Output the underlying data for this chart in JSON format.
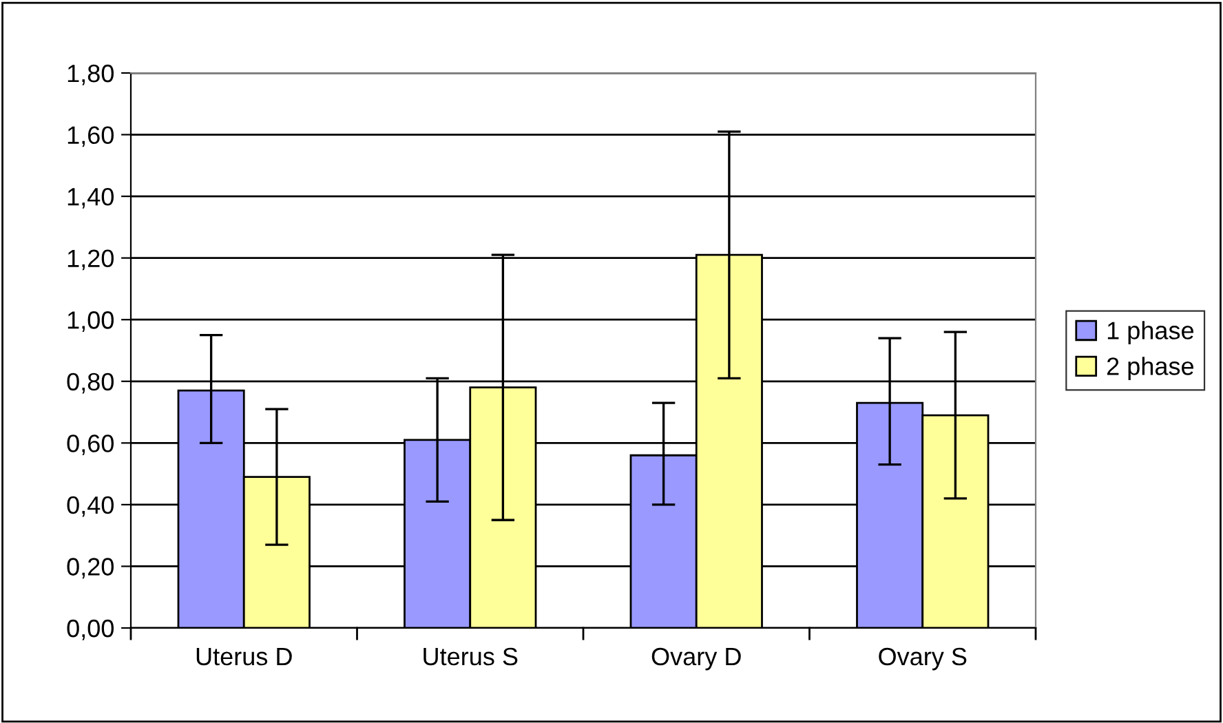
{
  "chart_data": {
    "type": "bar",
    "categories": [
      "Uterus D",
      "Uterus S",
      "Ovary D",
      "Ovary S"
    ],
    "series": [
      {
        "name": "1 phase",
        "color": "#9999ff",
        "values": [
          0.77,
          0.61,
          0.56,
          0.73
        ],
        "errors": [
          [
            0.6,
            0.95
          ],
          [
            0.41,
            0.81
          ],
          [
            0.4,
            0.73
          ],
          [
            0.53,
            0.94
          ]
        ]
      },
      {
        "name": "2 phase",
        "color": "#ffff99",
        "values": [
          0.49,
          0.78,
          1.21,
          0.69
        ],
        "errors": [
          [
            0.27,
            0.71
          ],
          [
            0.35,
            1.21
          ],
          [
            0.81,
            1.61
          ],
          [
            0.42,
            0.96
          ]
        ]
      }
    ],
    "ylim": [
      0,
      1.8
    ],
    "yticks": [
      {
        "value": 0,
        "label": "0,00"
      },
      {
        "value": 0.2,
        "label": "0,20"
      },
      {
        "value": 0.4,
        "label": "0,40"
      },
      {
        "value": 0.6,
        "label": "0,60"
      },
      {
        "value": 0.8,
        "label": "0,80"
      },
      {
        "value": 1.0,
        "label": "1,00"
      },
      {
        "value": 1.2,
        "label": "1,20"
      },
      {
        "value": 1.4,
        "label": "1,40"
      },
      {
        "value": 1.6,
        "label": "1,60"
      },
      {
        "value": 1.8,
        "label": "1,80"
      }
    ],
    "grid": "y",
    "legend": "right"
  }
}
